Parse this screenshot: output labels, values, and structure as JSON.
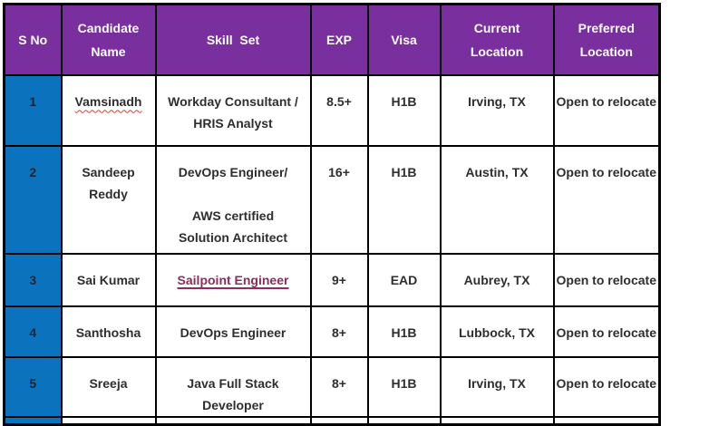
{
  "table": {
    "header": {
      "sno": "S No",
      "name": "Candidate\nName",
      "skill": "Skill  Set",
      "exp": "EXP",
      "visa": "Visa",
      "current": "Current\nLocation",
      "preferred": "Preferred\nLocation"
    },
    "rows": [
      {
        "sno": "1",
        "name": "Vamsinadh",
        "name_spellcheck": true,
        "skill": "Workday Consultant /\nHRIS Analyst",
        "skill_is_link": false,
        "exp": "8.5+",
        "visa": "H1B",
        "current": "Irving, TX",
        "preferred": "Open to relocate"
      },
      {
        "sno": "2",
        "name": "Sandeep\nReddy",
        "name_spellcheck": false,
        "skill": "DevOps Engineer/\n\nAWS certified\nSolution Architect",
        "skill_is_link": false,
        "exp": "16+",
        "visa": "H1B",
        "current": "Austin, TX",
        "preferred": "Open to relocate"
      },
      {
        "sno": "3",
        "name": "Sai Kumar",
        "name_spellcheck": false,
        "skill": "Sailpoint Engineer",
        "skill_is_link": true,
        "exp": "9+",
        "visa": "EAD",
        "current": "Aubrey, TX",
        "preferred": "Open to relocate"
      },
      {
        "sno": "4",
        "name": "Santhosha",
        "name_spellcheck": false,
        "skill": "DevOps Engineer",
        "skill_is_link": false,
        "exp": "8+",
        "visa": "H1B",
        "current": "Lubbock, TX",
        "preferred": "Open to relocate"
      },
      {
        "sno": "5",
        "name": "Sreeja",
        "name_spellcheck": false,
        "skill": "Java Full Stack Developer",
        "skill_is_link": false,
        "exp": "8+",
        "visa": "H1B",
        "current": "Irving, TX",
        "preferred": "Open to relocate"
      }
    ]
  },
  "colors": {
    "header_bg": "#7A2F9F",
    "sno_col_bg": "#0B73BE",
    "border": "#000000",
    "header_text": "#FFFFFF",
    "body_text": "#2E2E2E",
    "link_text": "#8E2C5C",
    "spellcheck_underline": "#E03C2D"
  }
}
